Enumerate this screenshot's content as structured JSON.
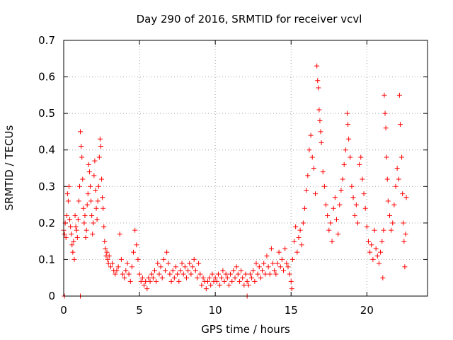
{
  "chart_data": {
    "type": "scatter",
    "title": "Day 290 of 2016, SRMTID for receiver vcvl",
    "xlabel": "GPS time / hours",
    "ylabel": "SRMTID / TECUs",
    "xlim": [
      0,
      24
    ],
    "ylim": [
      0,
      0.7
    ],
    "xticks": [
      0,
      5,
      10,
      15,
      20
    ],
    "xtick_labels": [
      "0",
      "5",
      "10",
      "15",
      "20"
    ],
    "yticks": [
      0,
      0.1,
      0.2,
      0.3,
      0.4,
      0.5,
      0.6,
      0.7
    ],
    "ytick_labels": [
      "0",
      "0.1",
      "0.2",
      "0.3",
      "0.4",
      "0.5",
      "0.6",
      "0.7"
    ],
    "grid": true,
    "marker": "+",
    "color": "#ff0000",
    "series": [
      {
        "name": "SRMTID",
        "points": [
          [
            0.0,
            0.18
          ],
          [
            0.05,
            0.17
          ],
          [
            0.1,
            0.2
          ],
          [
            0.15,
            0.16
          ],
          [
            0.2,
            0.22
          ],
          [
            0.25,
            0.28
          ],
          [
            0.3,
            0.26
          ],
          [
            0.35,
            0.3
          ],
          [
            0.4,
            0.21
          ],
          [
            0.45,
            0.19
          ],
          [
            0.5,
            0.17
          ],
          [
            0.55,
            0.14
          ],
          [
            0.6,
            0.12
          ],
          [
            0.65,
            0.15
          ],
          [
            0.7,
            0.1
          ],
          [
            0.75,
            0.22
          ],
          [
            0.8,
            0.19
          ],
          [
            0.85,
            0.18
          ],
          [
            0.9,
            0.16
          ],
          [
            0.95,
            0.21
          ],
          [
            1.0,
            0.26
          ],
          [
            1.05,
            0.3
          ],
          [
            1.1,
            0.45
          ],
          [
            1.15,
            0.41
          ],
          [
            1.2,
            0.38
          ],
          [
            1.25,
            0.32
          ],
          [
            1.3,
            0.24
          ],
          [
            1.35,
            0.2
          ],
          [
            1.4,
            0.22
          ],
          [
            1.45,
            0.16
          ],
          [
            1.5,
            0.18
          ],
          [
            1.55,
            0.25
          ],
          [
            1.6,
            0.28
          ],
          [
            1.65,
            0.36
          ],
          [
            1.7,
            0.34
          ],
          [
            1.75,
            0.3
          ],
          [
            1.8,
            0.26
          ],
          [
            1.85,
            0.22
          ],
          [
            1.9,
            0.17
          ],
          [
            1.95,
            0.2
          ],
          [
            2.0,
            0.33
          ],
          [
            2.05,
            0.37
          ],
          [
            2.1,
            0.29
          ],
          [
            2.15,
            0.24
          ],
          [
            2.2,
            0.21
          ],
          [
            2.25,
            0.26
          ],
          [
            2.3,
            0.3
          ],
          [
            2.35,
            0.38
          ],
          [
            2.4,
            0.43
          ],
          [
            2.45,
            0.41
          ],
          [
            2.5,
            0.32
          ],
          [
            2.55,
            0.27
          ],
          [
            2.6,
            0.24
          ],
          [
            2.65,
            0.19
          ],
          [
            2.7,
            0.15
          ],
          [
            2.75,
            0.13
          ],
          [
            2.8,
            0.11
          ],
          [
            2.85,
            0.12
          ],
          [
            2.9,
            0.1
          ],
          [
            2.95,
            0.09
          ],
          [
            3.0,
            0.11
          ],
          [
            3.1,
            0.08
          ],
          [
            3.2,
            0.09
          ],
          [
            3.3,
            0.07
          ],
          [
            3.4,
            0.06
          ],
          [
            3.5,
            0.07
          ],
          [
            3.6,
            0.08
          ],
          [
            3.7,
            0.17
          ],
          [
            3.8,
            0.1
          ],
          [
            3.9,
            0.06
          ],
          [
            4.0,
            0.05
          ],
          [
            4.1,
            0.07
          ],
          [
            4.2,
            0.09
          ],
          [
            4.3,
            0.06
          ],
          [
            4.4,
            0.04
          ],
          [
            4.5,
            0.08
          ],
          [
            4.6,
            0.12
          ],
          [
            4.7,
            0.18
          ],
          [
            4.8,
            0.14
          ],
          [
            4.9,
            0.1
          ],
          [
            5.0,
            0.06
          ],
          [
            5.1,
            0.04
          ],
          [
            5.2,
            0.05
          ],
          [
            5.3,
            0.03
          ],
          [
            5.4,
            0.04
          ],
          [
            5.5,
            0.02
          ],
          [
            5.6,
            0.05
          ],
          [
            5.7,
            0.04
          ],
          [
            5.8,
            0.06
          ],
          [
            5.9,
            0.05
          ],
          [
            6.0,
            0.07
          ],
          [
            6.1,
            0.04
          ],
          [
            6.2,
            0.09
          ],
          [
            6.3,
            0.06
          ],
          [
            6.4,
            0.08
          ],
          [
            6.5,
            0.05
          ],
          [
            6.6,
            0.1
          ],
          [
            6.7,
            0.07
          ],
          [
            6.8,
            0.12
          ],
          [
            6.9,
            0.09
          ],
          [
            7.0,
            0.06
          ],
          [
            7.1,
            0.04
          ],
          [
            7.2,
            0.07
          ],
          [
            7.3,
            0.05
          ],
          [
            7.4,
            0.08
          ],
          [
            7.5,
            0.06
          ],
          [
            7.6,
            0.04
          ],
          [
            7.7,
            0.07
          ],
          [
            7.8,
            0.09
          ],
          [
            7.9,
            0.06
          ],
          [
            8.0,
            0.08
          ],
          [
            8.1,
            0.05
          ],
          [
            8.2,
            0.07
          ],
          [
            8.3,
            0.09
          ],
          [
            8.4,
            0.06
          ],
          [
            8.5,
            0.08
          ],
          [
            8.6,
            0.1
          ],
          [
            8.7,
            0.07
          ],
          [
            8.8,
            0.05
          ],
          [
            8.9,
            0.09
          ],
          [
            9.0,
            0.06
          ],
          [
            9.1,
            0.03
          ],
          [
            9.2,
            0.05
          ],
          [
            9.3,
            0.04
          ],
          [
            9.4,
            0.02
          ],
          [
            9.5,
            0.04
          ],
          [
            9.6,
            0.05
          ],
          [
            9.7,
            0.03
          ],
          [
            9.8,
            0.06
          ],
          [
            9.9,
            0.04
          ],
          [
            10.0,
            0.05
          ],
          [
            10.1,
            0.04
          ],
          [
            10.2,
            0.06
          ],
          [
            10.3,
            0.03
          ],
          [
            10.4,
            0.05
          ],
          [
            10.5,
            0.07
          ],
          [
            10.6,
            0.04
          ],
          [
            10.7,
            0.06
          ],
          [
            10.8,
            0.05
          ],
          [
            10.9,
            0.03
          ],
          [
            11.0,
            0.06
          ],
          [
            11.1,
            0.04
          ],
          [
            11.2,
            0.07
          ],
          [
            11.3,
            0.05
          ],
          [
            11.4,
            0.08
          ],
          [
            11.5,
            0.06
          ],
          [
            11.6,
            0.04
          ],
          [
            11.7,
            0.07
          ],
          [
            11.8,
            0.05
          ],
          [
            11.9,
            0.03
          ],
          [
            12.0,
            0.06
          ],
          [
            12.1,
            0.04
          ],
          [
            12.2,
            0.03
          ],
          [
            12.3,
            0.06
          ],
          [
            12.4,
            0.05
          ],
          [
            12.5,
            0.07
          ],
          [
            12.6,
            0.04
          ],
          [
            12.7,
            0.09
          ],
          [
            12.8,
            0.06
          ],
          [
            12.9,
            0.08
          ],
          [
            13.0,
            0.05
          ],
          [
            13.1,
            0.07
          ],
          [
            13.2,
            0.09
          ],
          [
            13.3,
            0.06
          ],
          [
            13.4,
            0.11
          ],
          [
            13.5,
            0.08
          ],
          [
            13.6,
            0.06
          ],
          [
            13.7,
            0.13
          ],
          [
            13.8,
            0.09
          ],
          [
            13.9,
            0.07
          ],
          [
            14.0,
            0.06
          ],
          [
            14.1,
            0.09
          ],
          [
            14.2,
            0.12
          ],
          [
            14.3,
            0.08
          ],
          [
            14.4,
            0.1
          ],
          [
            14.5,
            0.07
          ],
          [
            14.6,
            0.13
          ],
          [
            14.7,
            0.09
          ],
          [
            14.8,
            0.08
          ],
          [
            14.9,
            0.06
          ],
          [
            15.0,
            0.04
          ],
          [
            15.05,
            0.02
          ],
          [
            15.1,
            0.1
          ],
          [
            15.2,
            0.15
          ],
          [
            15.3,
            0.19
          ],
          [
            15.4,
            0.12
          ],
          [
            15.5,
            0.16
          ],
          [
            15.6,
            0.18
          ],
          [
            15.7,
            0.14
          ],
          [
            15.8,
            0.2
          ],
          [
            15.9,
            0.24
          ],
          [
            16.0,
            0.29
          ],
          [
            16.1,
            0.33
          ],
          [
            16.2,
            0.4
          ],
          [
            16.3,
            0.44
          ],
          [
            16.4,
            0.38
          ],
          [
            16.5,
            0.35
          ],
          [
            16.6,
            0.28
          ],
          [
            16.7,
            0.63
          ],
          [
            16.75,
            0.59
          ],
          [
            16.8,
            0.57
          ],
          [
            16.85,
            0.51
          ],
          [
            16.9,
            0.48
          ],
          [
            16.95,
            0.45
          ],
          [
            17.0,
            0.42
          ],
          [
            17.1,
            0.34
          ],
          [
            17.2,
            0.3
          ],
          [
            17.3,
            0.25
          ],
          [
            17.4,
            0.22
          ],
          [
            17.5,
            0.18
          ],
          [
            17.6,
            0.2
          ],
          [
            17.7,
            0.15
          ],
          [
            17.8,
            0.24
          ],
          [
            17.9,
            0.27
          ],
          [
            18.0,
            0.21
          ],
          [
            18.1,
            0.17
          ],
          [
            18.2,
            0.25
          ],
          [
            18.3,
            0.29
          ],
          [
            18.4,
            0.32
          ],
          [
            18.5,
            0.36
          ],
          [
            18.6,
            0.4
          ],
          [
            18.7,
            0.5
          ],
          [
            18.75,
            0.47
          ],
          [
            18.8,
            0.43
          ],
          [
            18.9,
            0.38
          ],
          [
            19.0,
            0.3
          ],
          [
            19.1,
            0.27
          ],
          [
            19.2,
            0.22
          ],
          [
            19.3,
            0.25
          ],
          [
            19.4,
            0.2
          ],
          [
            19.5,
            0.36
          ],
          [
            19.6,
            0.38
          ],
          [
            19.7,
            0.32
          ],
          [
            19.8,
            0.28
          ],
          [
            19.9,
            0.24
          ],
          [
            20.0,
            0.19
          ],
          [
            20.1,
            0.15
          ],
          [
            20.2,
            0.12
          ],
          [
            20.3,
            0.14
          ],
          [
            20.4,
            0.1
          ],
          [
            20.5,
            0.18
          ],
          [
            20.6,
            0.13
          ],
          [
            20.7,
            0.11
          ],
          [
            20.8,
            0.09
          ],
          [
            20.9,
            0.12
          ],
          [
            21.0,
            0.15
          ],
          [
            21.05,
            0.05
          ],
          [
            21.1,
            0.18
          ],
          [
            21.15,
            0.55
          ],
          [
            21.2,
            0.5
          ],
          [
            21.25,
            0.46
          ],
          [
            21.3,
            0.38
          ],
          [
            21.35,
            0.32
          ],
          [
            21.4,
            0.26
          ],
          [
            21.5,
            0.22
          ],
          [
            21.6,
            0.18
          ],
          [
            21.7,
            0.2
          ],
          [
            21.8,
            0.25
          ],
          [
            21.9,
            0.3
          ],
          [
            22.0,
            0.35
          ],
          [
            22.1,
            0.32
          ],
          [
            22.15,
            0.55
          ],
          [
            22.2,
            0.47
          ],
          [
            22.3,
            0.38
          ],
          [
            22.35,
            0.28
          ],
          [
            22.4,
            0.2
          ],
          [
            22.45,
            0.15
          ],
          [
            22.5,
            0.08
          ],
          [
            22.55,
            0.17
          ],
          [
            22.6,
            0.27
          ],
          [
            0.05,
            0.0
          ],
          [
            1.1,
            0.0
          ],
          [
            12.1,
            0.0
          ]
        ]
      }
    ]
  }
}
